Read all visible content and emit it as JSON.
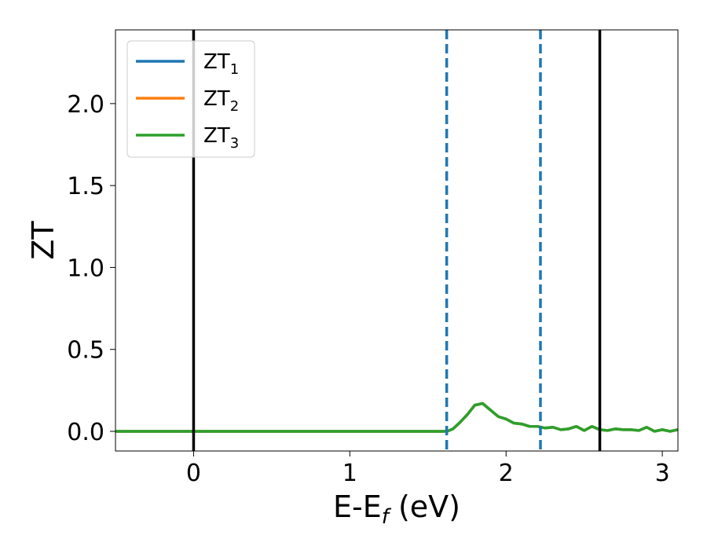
{
  "chart_data": {
    "type": "line",
    "xlabel_main": "E-E",
    "xlabel_sub": "f",
    "xlabel_tail": " (eV)",
    "ylabel": "ZT",
    "xlim": [
      -0.5,
      3.1
    ],
    "ylim": [
      -0.12,
      2.45
    ],
    "xticks": [
      0,
      1,
      2,
      3
    ],
    "yticks": [
      0.0,
      0.5,
      1.0,
      1.5,
      2.0
    ],
    "xtick_labels": [
      "0",
      "1",
      "2",
      "3"
    ],
    "ytick_labels": [
      "0.0",
      "0.5",
      "1.0",
      "1.5",
      "2.0"
    ],
    "grid": false,
    "legend_position": "top-left",
    "series": [
      {
        "name_main": "ZT",
        "name_sub": "1",
        "color": "#1f77b4",
        "x": [
          -0.5,
          1.6,
          1.63,
          1.66,
          1.7,
          1.75,
          1.8,
          1.85,
          1.9,
          1.95,
          2.0,
          2.05,
          2.1,
          2.15,
          2.2,
          2.25,
          2.3,
          2.35,
          2.4,
          2.45,
          2.5,
          2.55,
          2.6,
          2.65,
          2.7,
          2.75,
          2.8,
          2.85,
          2.9,
          2.95,
          3.0,
          3.05,
          3.1
        ],
        "y": [
          0.0,
          0.0,
          0.003,
          0.015,
          0.05,
          0.1,
          0.16,
          0.17,
          0.13,
          0.09,
          0.075,
          0.05,
          0.045,
          0.03,
          0.03,
          0.02,
          0.025,
          0.01,
          0.015,
          0.03,
          0.005,
          0.03,
          0.01,
          0.005,
          0.015,
          0.01,
          0.01,
          0.005,
          0.025,
          0.0,
          0.01,
          0.0,
          0.01
        ]
      },
      {
        "name_main": "ZT",
        "name_sub": "2",
        "color": "#ff7f0e",
        "x": [
          -0.5,
          1.6,
          1.63,
          1.66,
          1.7,
          1.75,
          1.8,
          1.85,
          1.9,
          1.95,
          2.0,
          2.05,
          2.1,
          2.15,
          2.2,
          2.25,
          2.3,
          2.35,
          2.4,
          2.45,
          2.5,
          2.55,
          2.6,
          2.65,
          2.7,
          2.75,
          2.8,
          2.85,
          2.9,
          2.95,
          3.0,
          3.05,
          3.1
        ],
        "y": [
          0.0,
          0.0,
          0.003,
          0.015,
          0.05,
          0.1,
          0.16,
          0.17,
          0.13,
          0.09,
          0.075,
          0.05,
          0.045,
          0.03,
          0.03,
          0.02,
          0.025,
          0.01,
          0.015,
          0.03,
          0.005,
          0.03,
          0.01,
          0.005,
          0.015,
          0.01,
          0.01,
          0.005,
          0.025,
          0.0,
          0.01,
          0.0,
          0.01
        ]
      },
      {
        "name_main": "ZT",
        "name_sub": "3",
        "color": "#2ca02c",
        "x": [
          -0.5,
          1.6,
          1.63,
          1.66,
          1.7,
          1.75,
          1.8,
          1.85,
          1.9,
          1.95,
          2.0,
          2.05,
          2.1,
          2.15,
          2.2,
          2.25,
          2.3,
          2.35,
          2.4,
          2.45,
          2.5,
          2.55,
          2.6,
          2.65,
          2.7,
          2.75,
          2.8,
          2.85,
          2.9,
          2.95,
          3.0,
          3.05,
          3.1
        ],
        "y": [
          0.0,
          0.0,
          0.003,
          0.015,
          0.05,
          0.1,
          0.16,
          0.17,
          0.13,
          0.09,
          0.075,
          0.05,
          0.045,
          0.03,
          0.03,
          0.02,
          0.025,
          0.01,
          0.015,
          0.03,
          0.005,
          0.03,
          0.01,
          0.005,
          0.015,
          0.01,
          0.01,
          0.005,
          0.025,
          0.0,
          0.01,
          0.0,
          0.01
        ]
      }
    ],
    "vertical_lines": [
      {
        "x": 0.0,
        "style": "solid",
        "color": "#000000"
      },
      {
        "x": 1.62,
        "style": "dashed",
        "color": "#1f77b4"
      },
      {
        "x": 2.22,
        "style": "dashed",
        "color": "#1f77b4"
      },
      {
        "x": 2.6,
        "style": "solid",
        "color": "#000000"
      }
    ]
  }
}
